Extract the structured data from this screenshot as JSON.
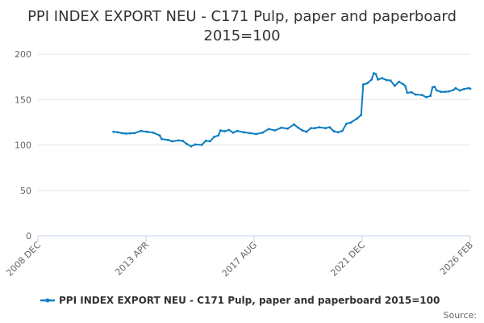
{
  "chart_data": {
    "type": "line",
    "title": "PPI INDEX EXPORT NEU - C171 Pulp, paper and paperboard",
    "subtitle": "2015=100",
    "xlabel": "",
    "ylabel": "",
    "x_tick_labels": [
      "2008 DEC",
      "2013 APR",
      "2017 AUG",
      "2021 DEC",
      "2026 FEB"
    ],
    "x_range": [
      "2008-12",
      "2026-02"
    ],
    "y_ticks": [
      0,
      50,
      100,
      150,
      200
    ],
    "ylim": [
      0,
      200
    ],
    "grid": true,
    "legend_position": "bottom",
    "source_label": "Source:",
    "series": [
      {
        "name": "PPI INDEX EXPORT NEU - C171 Pulp, paper and paperboard 2015=100",
        "color": "#0f7dc2",
        "points": [
          [
            "2011-12",
            114.5
          ],
          [
            "2012-02",
            114.0
          ],
          [
            "2012-04",
            113.0
          ],
          [
            "2012-06",
            112.5
          ],
          [
            "2012-08",
            112.8
          ],
          [
            "2012-10",
            113.0
          ],
          [
            "2013-01",
            115.5
          ],
          [
            "2013-04",
            114.5
          ],
          [
            "2013-07",
            113.5
          ],
          [
            "2013-10",
            110.5
          ],
          [
            "2013-11",
            106.5
          ],
          [
            "2014-02",
            105.5
          ],
          [
            "2014-04",
            104.0
          ],
          [
            "2014-07",
            105.0
          ],
          [
            "2014-09",
            104.5
          ],
          [
            "2014-11",
            101.0
          ],
          [
            "2015-01",
            98.5
          ],
          [
            "2015-03",
            100.5
          ],
          [
            "2015-06",
            100.0
          ],
          [
            "2015-08",
            104.5
          ],
          [
            "2015-10",
            104.0
          ],
          [
            "2015-12",
            109.0
          ],
          [
            "2016-02",
            110.5
          ],
          [
            "2016-03",
            116.0
          ],
          [
            "2016-05",
            115.0
          ],
          [
            "2016-07",
            116.5
          ],
          [
            "2016-09",
            113.5
          ],
          [
            "2016-11",
            115.5
          ],
          [
            "2017-02",
            114.0
          ],
          [
            "2017-05",
            113.0
          ],
          [
            "2017-08",
            112.0
          ],
          [
            "2017-11",
            113.5
          ],
          [
            "2018-02",
            117.5
          ],
          [
            "2018-05",
            116.0
          ],
          [
            "2018-08",
            119.0
          ],
          [
            "2018-11",
            118.0
          ],
          [
            "2019-02",
            122.5
          ],
          [
            "2019-04",
            119.0
          ],
          [
            "2019-06",
            116.0
          ],
          [
            "2019-08",
            114.5
          ],
          [
            "2019-10",
            118.5
          ],
          [
            "2019-12",
            118.5
          ],
          [
            "2020-02",
            119.5
          ],
          [
            "2020-05",
            118.5
          ],
          [
            "2020-07",
            119.5
          ],
          [
            "2020-09",
            115.0
          ],
          [
            "2020-11",
            114.0
          ],
          [
            "2021-01",
            115.5
          ],
          [
            "2021-03",
            123.5
          ],
          [
            "2021-05",
            124.5
          ],
          [
            "2021-08",
            129.0
          ],
          [
            "2021-10",
            133.0
          ],
          [
            "2021-11",
            166.5
          ],
          [
            "2022-01",
            168.0
          ],
          [
            "2022-03",
            172.0
          ],
          [
            "2022-04",
            179.0
          ],
          [
            "2022-05",
            178.0
          ],
          [
            "2022-06",
            172.0
          ],
          [
            "2022-08",
            173.5
          ],
          [
            "2022-10",
            171.5
          ],
          [
            "2022-12",
            171.0
          ],
          [
            "2023-02",
            165.0
          ],
          [
            "2023-04",
            169.5
          ],
          [
            "2023-06",
            167.0
          ],
          [
            "2023-07",
            165.0
          ],
          [
            "2023-08",
            157.5
          ],
          [
            "2023-10",
            158.0
          ],
          [
            "2023-12",
            155.5
          ],
          [
            "2024-03",
            155.0
          ],
          [
            "2024-05",
            152.5
          ],
          [
            "2024-07",
            154.0
          ],
          [
            "2024-08",
            163.5
          ],
          [
            "2024-09",
            164.0
          ],
          [
            "2024-10",
            160.0
          ],
          [
            "2024-12",
            158.5
          ],
          [
            "2025-02",
            158.5
          ],
          [
            "2025-04",
            159.0
          ],
          [
            "2025-06",
            160.5
          ],
          [
            "2025-07",
            162.5
          ],
          [
            "2025-09",
            160.0
          ],
          [
            "2025-11",
            161.5
          ],
          [
            "2026-01",
            162.5
          ],
          [
            "2026-02",
            162.0
          ]
        ]
      }
    ]
  }
}
